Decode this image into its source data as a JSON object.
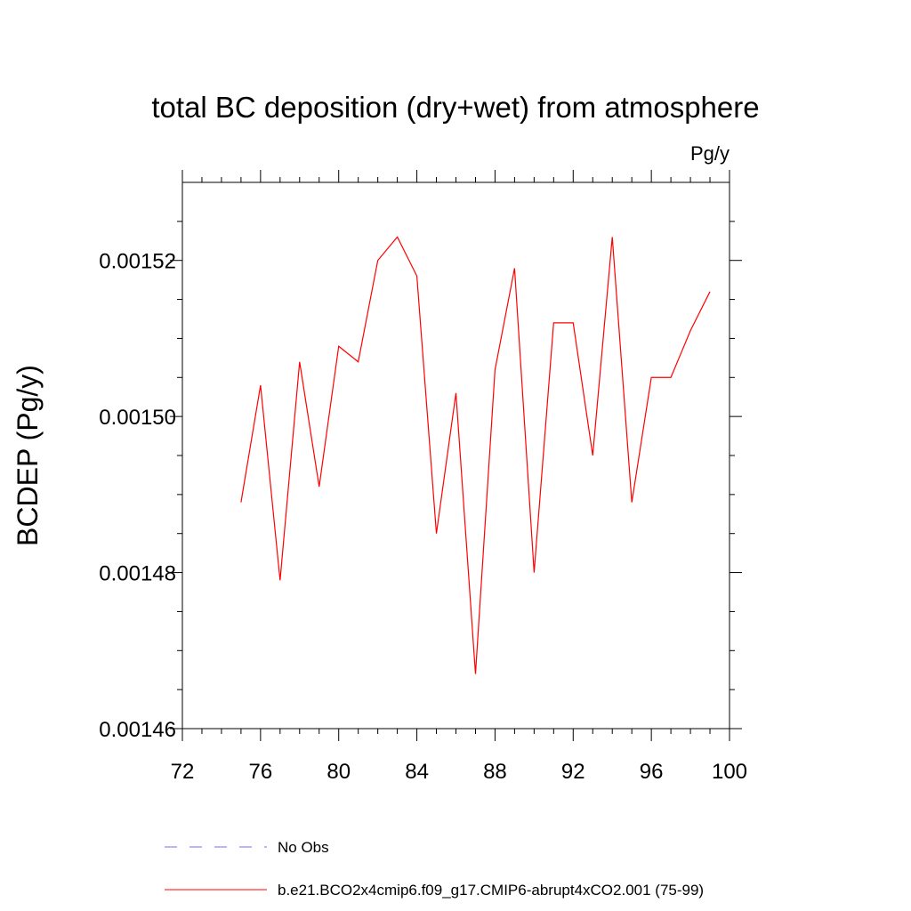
{
  "chart_data": {
    "type": "line",
    "title": "total BC deposition (dry+wet) from atmosphere",
    "units_label": "Pg/y",
    "ylabel": "BCDEP  (Pg/y)",
    "xlabel": "",
    "xlim": [
      72,
      100
    ],
    "ylim": [
      0.00146,
      0.00153
    ],
    "x_ticks": [
      72,
      76,
      80,
      84,
      88,
      92,
      96,
      100
    ],
    "x_tick_labels": [
      "72",
      "76",
      "80",
      "84",
      "88",
      "92",
      "96",
      "100"
    ],
    "y_ticks": [
      0.00146,
      0.00148,
      0.0015,
      0.00152
    ],
    "y_tick_labels": [
      "0.00146",
      "0.00148",
      "0.00150",
      "0.00152"
    ],
    "grid": false,
    "legend_position": "bottom",
    "series": [
      {
        "name": "b.e21.BCO2x4cmip6.f09_g17.CMIP6-abrupt4xCO2.001 (75-99)",
        "color": "#ff0000",
        "style": "solid",
        "x": [
          75,
          76,
          77,
          78,
          79,
          80,
          81,
          82,
          83,
          84,
          85,
          86,
          87,
          88,
          89,
          90,
          91,
          92,
          93,
          94,
          95,
          96,
          97,
          98,
          99
        ],
        "y": [
          0.001489,
          0.001504,
          0.001479,
          0.001507,
          0.001491,
          0.001509,
          0.001507,
          0.00152,
          0.001523,
          0.001518,
          0.001485,
          0.001503,
          0.001467,
          0.001506,
          0.001519,
          0.00148,
          0.001512,
          0.001512,
          0.001495,
          0.001523,
          0.001489,
          0.001505,
          0.001505,
          0.001511,
          0.001516
        ]
      }
    ],
    "legend": [
      {
        "label": "No Obs",
        "color": "#7b68ee",
        "style": "dashed"
      },
      {
        "label": "b.e21.BCO2x4cmip6.f09_g17.CMIP6-abrupt4xCO2.001 (75-99)",
        "color": "#ff0000",
        "style": "solid"
      }
    ]
  }
}
